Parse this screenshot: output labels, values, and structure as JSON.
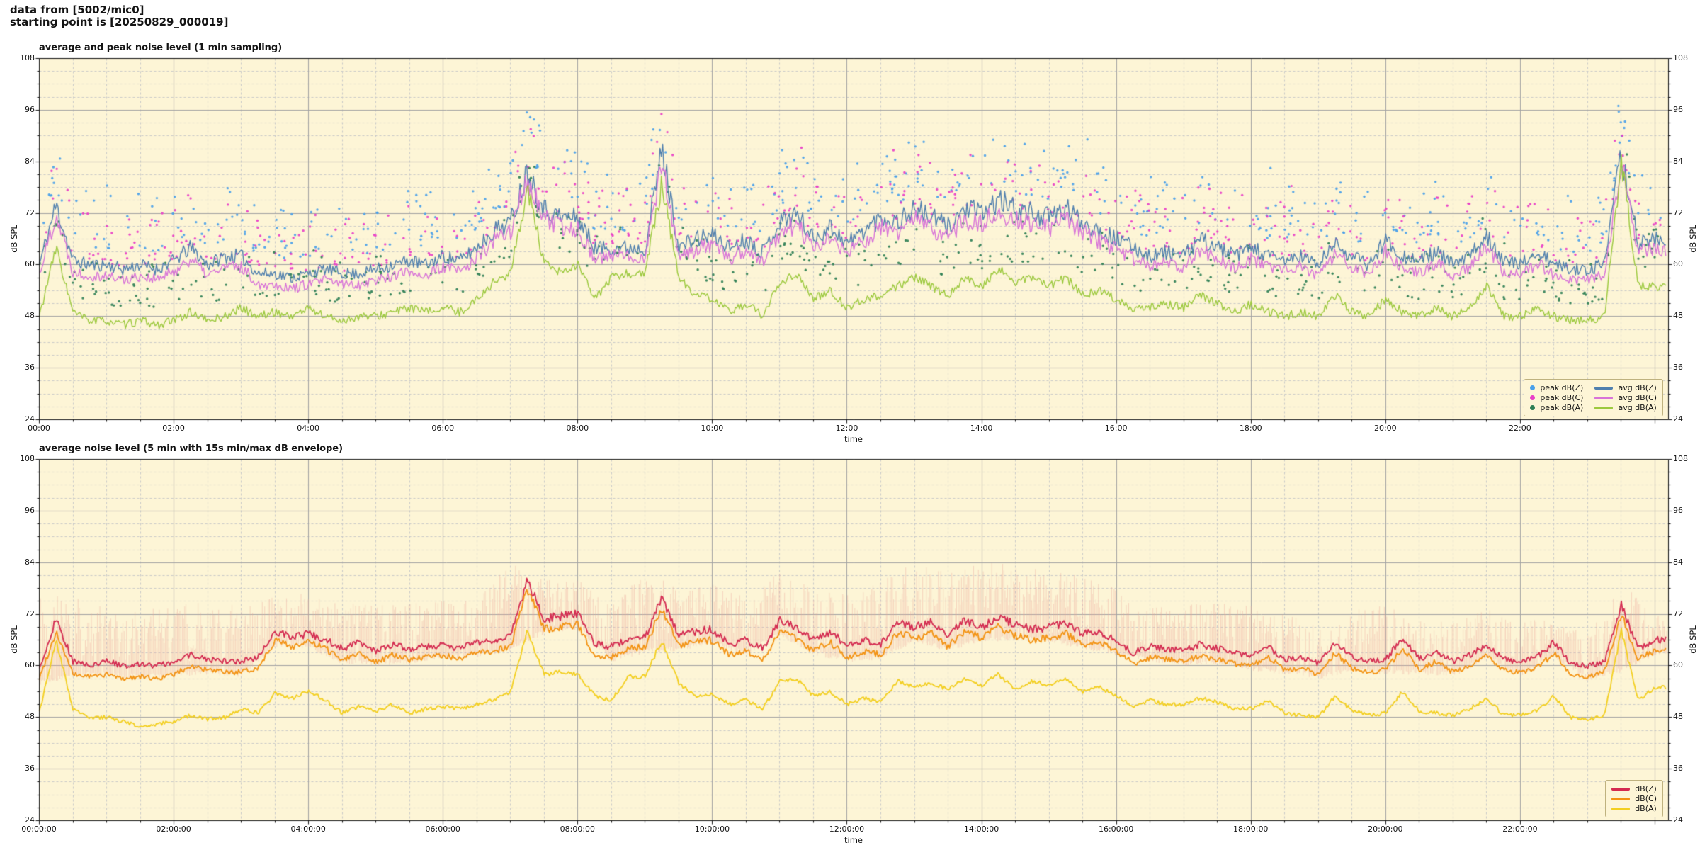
{
  "header": {
    "line1": "data from [5002/mic0]",
    "line2": "starting point is [20250829_000019]"
  },
  "colors": {
    "figure_bg": "#ffffff",
    "plot_bg": "#fdf5d6",
    "grid_major": "#a3a3a3",
    "grid_minor": "#c9c9c9",
    "spine": "#141414",
    "legend_bg": "#fdf5d6",
    "legend_border": "#bfb27f",
    "avg_z": "#4f7fae",
    "avg_c": "#d873d8",
    "avg_a": "#9cc93e",
    "peak_z": "#49a0ea",
    "peak_c": "#e93ec8",
    "peak_a": "#2e7f55",
    "bot_z": "#d42a50",
    "bot_c": "#f39313",
    "bot_a": "#f3cf20",
    "env": "#eba89a"
  },
  "chart_data": [
    {
      "type": "line",
      "title": "average and peak noise level (1 min sampling)",
      "xlabel": "time",
      "ylabel": "dB SPL",
      "ylim": [
        24,
        108
      ],
      "xlim_hours": [
        0,
        24.2
      ],
      "y_major_ticks": [
        24,
        36,
        48,
        60,
        72,
        84,
        96,
        108
      ],
      "y_minor_step_db": 3,
      "x_major_step_hours": 2,
      "x_minor_step_hours": 0.5,
      "x_tick_labels": [
        "00:00",
        "02:00",
        "04:00",
        "06:00",
        "08:00",
        "10:00",
        "12:00",
        "14:00",
        "16:00",
        "18:00",
        "20:00",
        "22:00"
      ],
      "grid": true,
      "legend": {
        "position": "lower right",
        "columns": [
          {
            "entries": [
              {
                "label": "peak dB(Z)",
                "marker": "dot",
                "color_key": "peak_z"
              },
              {
                "label": "peak dB(C)",
                "marker": "dot",
                "color_key": "peak_c"
              },
              {
                "label": "peak dB(A)",
                "marker": "dot",
                "color_key": "peak_a"
              }
            ]
          },
          {
            "entries": [
              {
                "label": "avg dB(Z)",
                "marker": "line",
                "color_key": "avg_z"
              },
              {
                "label": "avg dB(C)",
                "marker": "line",
                "color_key": "avg_c"
              },
              {
                "label": "avg dB(A)",
                "marker": "line",
                "color_key": "avg_a"
              }
            ]
          }
        ]
      },
      "series": [
        {
          "name": "avg dB(Z)",
          "style": "line",
          "color_key": "avg_z",
          "dt_hours": 0.25,
          "jitter_db": 1.2,
          "seed": 11,
          "y": [
            60,
            74,
            61,
            60,
            60,
            59,
            60,
            59,
            61,
            64,
            60,
            62,
            62,
            58,
            58,
            57,
            58,
            59,
            58,
            58,
            59,
            60,
            61,
            60,
            62,
            61,
            64,
            68,
            70,
            82,
            73,
            71,
            71,
            64,
            64,
            64,
            64,
            87,
            64,
            66,
            67,
            64,
            66,
            63,
            70,
            72,
            66,
            69,
            65,
            68,
            71,
            70,
            73,
            71,
            69,
            73,
            72,
            75,
            73,
            72,
            71,
            73,
            70,
            68,
            66,
            64,
            62,
            63,
            62,
            66,
            64,
            62,
            64,
            62,
            61,
            62,
            60,
            65,
            62,
            60,
            66,
            62,
            61,
            63,
            60,
            62,
            67,
            61,
            60,
            63,
            60,
            59,
            59,
            60,
            86,
            65,
            66
          ]
        },
        {
          "name": "avg dB(C)",
          "style": "line",
          "color_key": "avg_c",
          "dt_hours": 0.25,
          "jitter_db": 1.2,
          "seed": 22,
          "y": [
            58,
            72,
            58.5,
            57.5,
            57.5,
            56.5,
            57.5,
            56.5,
            58.5,
            61.5,
            57.5,
            59.5,
            59.5,
            55.5,
            55.5,
            54.5,
            55.5,
            56.5,
            55.5,
            55.5,
            56.5,
            57.5,
            58.5,
            57.5,
            59.5,
            58.5,
            61.5,
            65.5,
            68,
            80,
            70.5,
            68.5,
            68.5,
            61.5,
            62,
            62,
            62,
            84.5,
            61.5,
            63.5,
            64.5,
            61.5,
            63.5,
            60.5,
            67.5,
            69.5,
            63.5,
            66.5,
            62.5,
            65.5,
            68.5,
            67.5,
            70.5,
            68.5,
            66.5,
            70.5,
            69.5,
            72.5,
            70.5,
            69.5,
            68.5,
            70.5,
            67.5,
            65.5,
            63.5,
            61.5,
            59.5,
            60.5,
            59.5,
            63.5,
            61.5,
            59.5,
            61.5,
            59.5,
            58.5,
            59.5,
            57.5,
            62.5,
            59.5,
            57.5,
            63.5,
            59.5,
            58.5,
            60.5,
            57.5,
            59.5,
            64.5,
            58.5,
            57.5,
            60.5,
            57.5,
            56.5,
            56.5,
            57.5,
            83,
            63,
            63.5
          ]
        },
        {
          "name": "avg dB(A)",
          "style": "line",
          "color_key": "avg_a",
          "dt_hours": 0.25,
          "jitter_db": 1.0,
          "seed": 33,
          "y": [
            48,
            64,
            49,
            47,
            47,
            46,
            47,
            46,
            47,
            49,
            47,
            48,
            50,
            48,
            49,
            48,
            50,
            48,
            47,
            48,
            48,
            49,
            50,
            49,
            50,
            49,
            52,
            56,
            58,
            78,
            60,
            58,
            60,
            52,
            57,
            58,
            58,
            79,
            57,
            53,
            52,
            49,
            51,
            48,
            56,
            58,
            52,
            54,
            50,
            52,
            53,
            55,
            57,
            55,
            53,
            57,
            55,
            59,
            56,
            57,
            55,
            57,
            53,
            54,
            52,
            50,
            50,
            51,
            50,
            53,
            51,
            49,
            51,
            49,
            48,
            49,
            48,
            53,
            49,
            48,
            52,
            49,
            48,
            50,
            48,
            50,
            55,
            48,
            48,
            50,
            48,
            47,
            47,
            48,
            84,
            55,
            55
          ]
        },
        {
          "name": "peak dB(Z)",
          "style": "scatter",
          "color_key": "peak_z",
          "approximate": true,
          "derived_from": "avg dB(Z)",
          "offset_db": [
            4,
            17
          ],
          "count": 520,
          "seed": 44
        },
        {
          "name": "peak dB(C)",
          "style": "scatter",
          "color_key": "peak_c",
          "approximate": true,
          "derived_from": "avg dB(C)",
          "offset_db": [
            3,
            16
          ],
          "count": 520,
          "seed": 55
        },
        {
          "name": "peak dB(A)",
          "style": "scatter",
          "color_key": "peak_a",
          "approximate": true,
          "derived_from": "avg dB(A)",
          "offset_db": [
            4,
            14
          ],
          "count": 520,
          "seed": 66
        }
      ]
    },
    {
      "type": "line",
      "title": "average noise level (5 min with 15s min/max dB envelope)",
      "xlabel": "time",
      "ylabel": "dB SPL",
      "ylim": [
        24,
        108
      ],
      "xlim_hours": [
        0,
        24.2
      ],
      "y_major_ticks": [
        24,
        36,
        48,
        60,
        72,
        84,
        96,
        108
      ],
      "y_minor_step_db": 3,
      "x_major_step_hours": 2,
      "x_minor_step_hours": 0.5,
      "x_tick_labels": [
        "00:00:00",
        "02:00:00",
        "04:00:00",
        "06:00:00",
        "08:00:00",
        "10:00:00",
        "12:00:00",
        "14:00:00",
        "16:00:00",
        "18:00:00",
        "20:00:00",
        "22:00:00"
      ],
      "grid": true,
      "legend": {
        "position": "lower right",
        "columns": [
          {
            "entries": [
              {
                "label": "dB(Z)",
                "marker": "line",
                "color_key": "bot_z"
              },
              {
                "label": "dB(C)",
                "marker": "line",
                "color_key": "bot_c"
              },
              {
                "label": "dB(A)",
                "marker": "line",
                "color_key": "bot_a"
              }
            ]
          }
        ]
      },
      "series": [
        {
          "name": "15s min/max dB envelope",
          "style": "band",
          "color_key": "env",
          "dt_hours": 0.5,
          "seed": 77,
          "y_max": [
            78,
            76,
            74,
            73,
            74,
            75,
            74,
            76,
            77,
            75,
            74,
            75,
            75,
            76,
            84,
            80,
            80,
            74,
            82,
            78,
            79,
            76,
            82,
            78,
            77,
            80,
            84,
            82,
            85,
            83,
            83,
            81,
            78,
            74,
            74,
            75,
            74,
            72,
            70,
            73,
            74,
            71,
            70,
            73,
            72,
            70,
            68,
            80,
            72
          ],
          "y_min": [
            56,
            58,
            58,
            57.5,
            58,
            58.5,
            58,
            65,
            64.5,
            61,
            60.5,
            61,
            62,
            62.5,
            64,
            68,
            69,
            61.5,
            63.5,
            64,
            65.5,
            63,
            67.5,
            63,
            61.5,
            62,
            66,
            64,
            66,
            66.5,
            66,
            64.5,
            63,
            61.5,
            60.5,
            61,
            59.5,
            58.5,
            57.5,
            59,
            58.5,
            58.5,
            58,
            62,
            58,
            62.5,
            57,
            59,
            63
          ]
        },
        {
          "name": "dB(Z)",
          "style": "line",
          "color_key": "bot_z",
          "dt_hours": 0.25,
          "jitter_db": 0.5,
          "seed": 88,
          "y": [
            59,
            71,
            61,
            60,
            61,
            60,
            60.5,
            60,
            61,
            62.5,
            61.5,
            61,
            61,
            62,
            68,
            66.5,
            67.5,
            66,
            64,
            65.5,
            63.5,
            65,
            64,
            64.5,
            65,
            64,
            65.5,
            66,
            67,
            80,
            71,
            71.5,
            72,
            65,
            64.5,
            66,
            66.5,
            76,
            67,
            68,
            68.5,
            65,
            66,
            64,
            70.5,
            69,
            66,
            68,
            64.5,
            66,
            65,
            70,
            69,
            70,
            67,
            70.5,
            69,
            71.5,
            69.5,
            68.5,
            69,
            70,
            67.5,
            68,
            66,
            63,
            64.5,
            64,
            63.5,
            65,
            64,
            63,
            62.5,
            64.5,
            61.5,
            62,
            60.5,
            65.5,
            62,
            61,
            61.5,
            66.5,
            61.5,
            63.5,
            61,
            62.5,
            65,
            61.5,
            61,
            62,
            65.5,
            60.5,
            60,
            61,
            74,
            64,
            66
          ]
        },
        {
          "name": "dB(C)",
          "style": "line",
          "color_key": "bot_c",
          "dt_hours": 0.25,
          "jitter_db": 0.5,
          "seed": 99,
          "y": [
            57,
            68,
            58,
            57.5,
            58,
            57,
            57.5,
            57,
            58,
            60,
            59,
            58.5,
            58.5,
            59.5,
            66,
            64.5,
            65.5,
            64,
            61.5,
            63,
            61,
            62.5,
            61.5,
            62,
            62.5,
            61.5,
            63,
            63.5,
            64.5,
            78,
            68.5,
            69,
            69.5,
            62.5,
            62,
            64,
            64.5,
            73.5,
            64.5,
            65.5,
            66,
            62.5,
            63.5,
            61.5,
            68,
            66.5,
            63.5,
            65.5,
            62,
            63.5,
            62.5,
            67.5,
            66.5,
            67.5,
            64.5,
            68,
            66.5,
            69,
            67,
            66,
            66.5,
            67.5,
            65,
            65.5,
            63.5,
            60.5,
            62,
            61.5,
            61,
            62.5,
            61.5,
            60.5,
            60,
            62,
            59,
            59.5,
            58,
            63,
            59.5,
            58.5,
            59,
            64,
            59,
            61,
            58.5,
            60,
            62.5,
            59,
            58.5,
            59.5,
            63,
            58,
            57.5,
            58.5,
            72,
            61.5,
            63.5
          ]
        },
        {
          "name": "dB(A)",
          "style": "line",
          "color_key": "bot_a",
          "dt_hours": 0.25,
          "jitter_db": 0.45,
          "seed": 111,
          "y": [
            49,
            66,
            50,
            48,
            48,
            47,
            46,
            46.5,
            47,
            48.5,
            47.5,
            48,
            50,
            49,
            53.5,
            52.5,
            54,
            52,
            49,
            50.5,
            49.5,
            51,
            49,
            50,
            50.5,
            50,
            51,
            52,
            54,
            68,
            58,
            58.5,
            58,
            53,
            52,
            57.5,
            57.5,
            66,
            56,
            53,
            53.5,
            51,
            52,
            50,
            56.5,
            57,
            53,
            54,
            51,
            52.5,
            51.5,
            56.5,
            55,
            56,
            54.5,
            57,
            55.5,
            58,
            54.5,
            56.5,
            55.5,
            57,
            54,
            55,
            53,
            50.5,
            52,
            51,
            51,
            52.5,
            51.5,
            50,
            50,
            52,
            49,
            48.5,
            48,
            53,
            49.5,
            48.5,
            49,
            54,
            49.5,
            49,
            48.5,
            50,
            52.5,
            48.5,
            48.5,
            49.5,
            53,
            48,
            47.5,
            48.5,
            68,
            52,
            55
          ]
        }
      ]
    }
  ]
}
